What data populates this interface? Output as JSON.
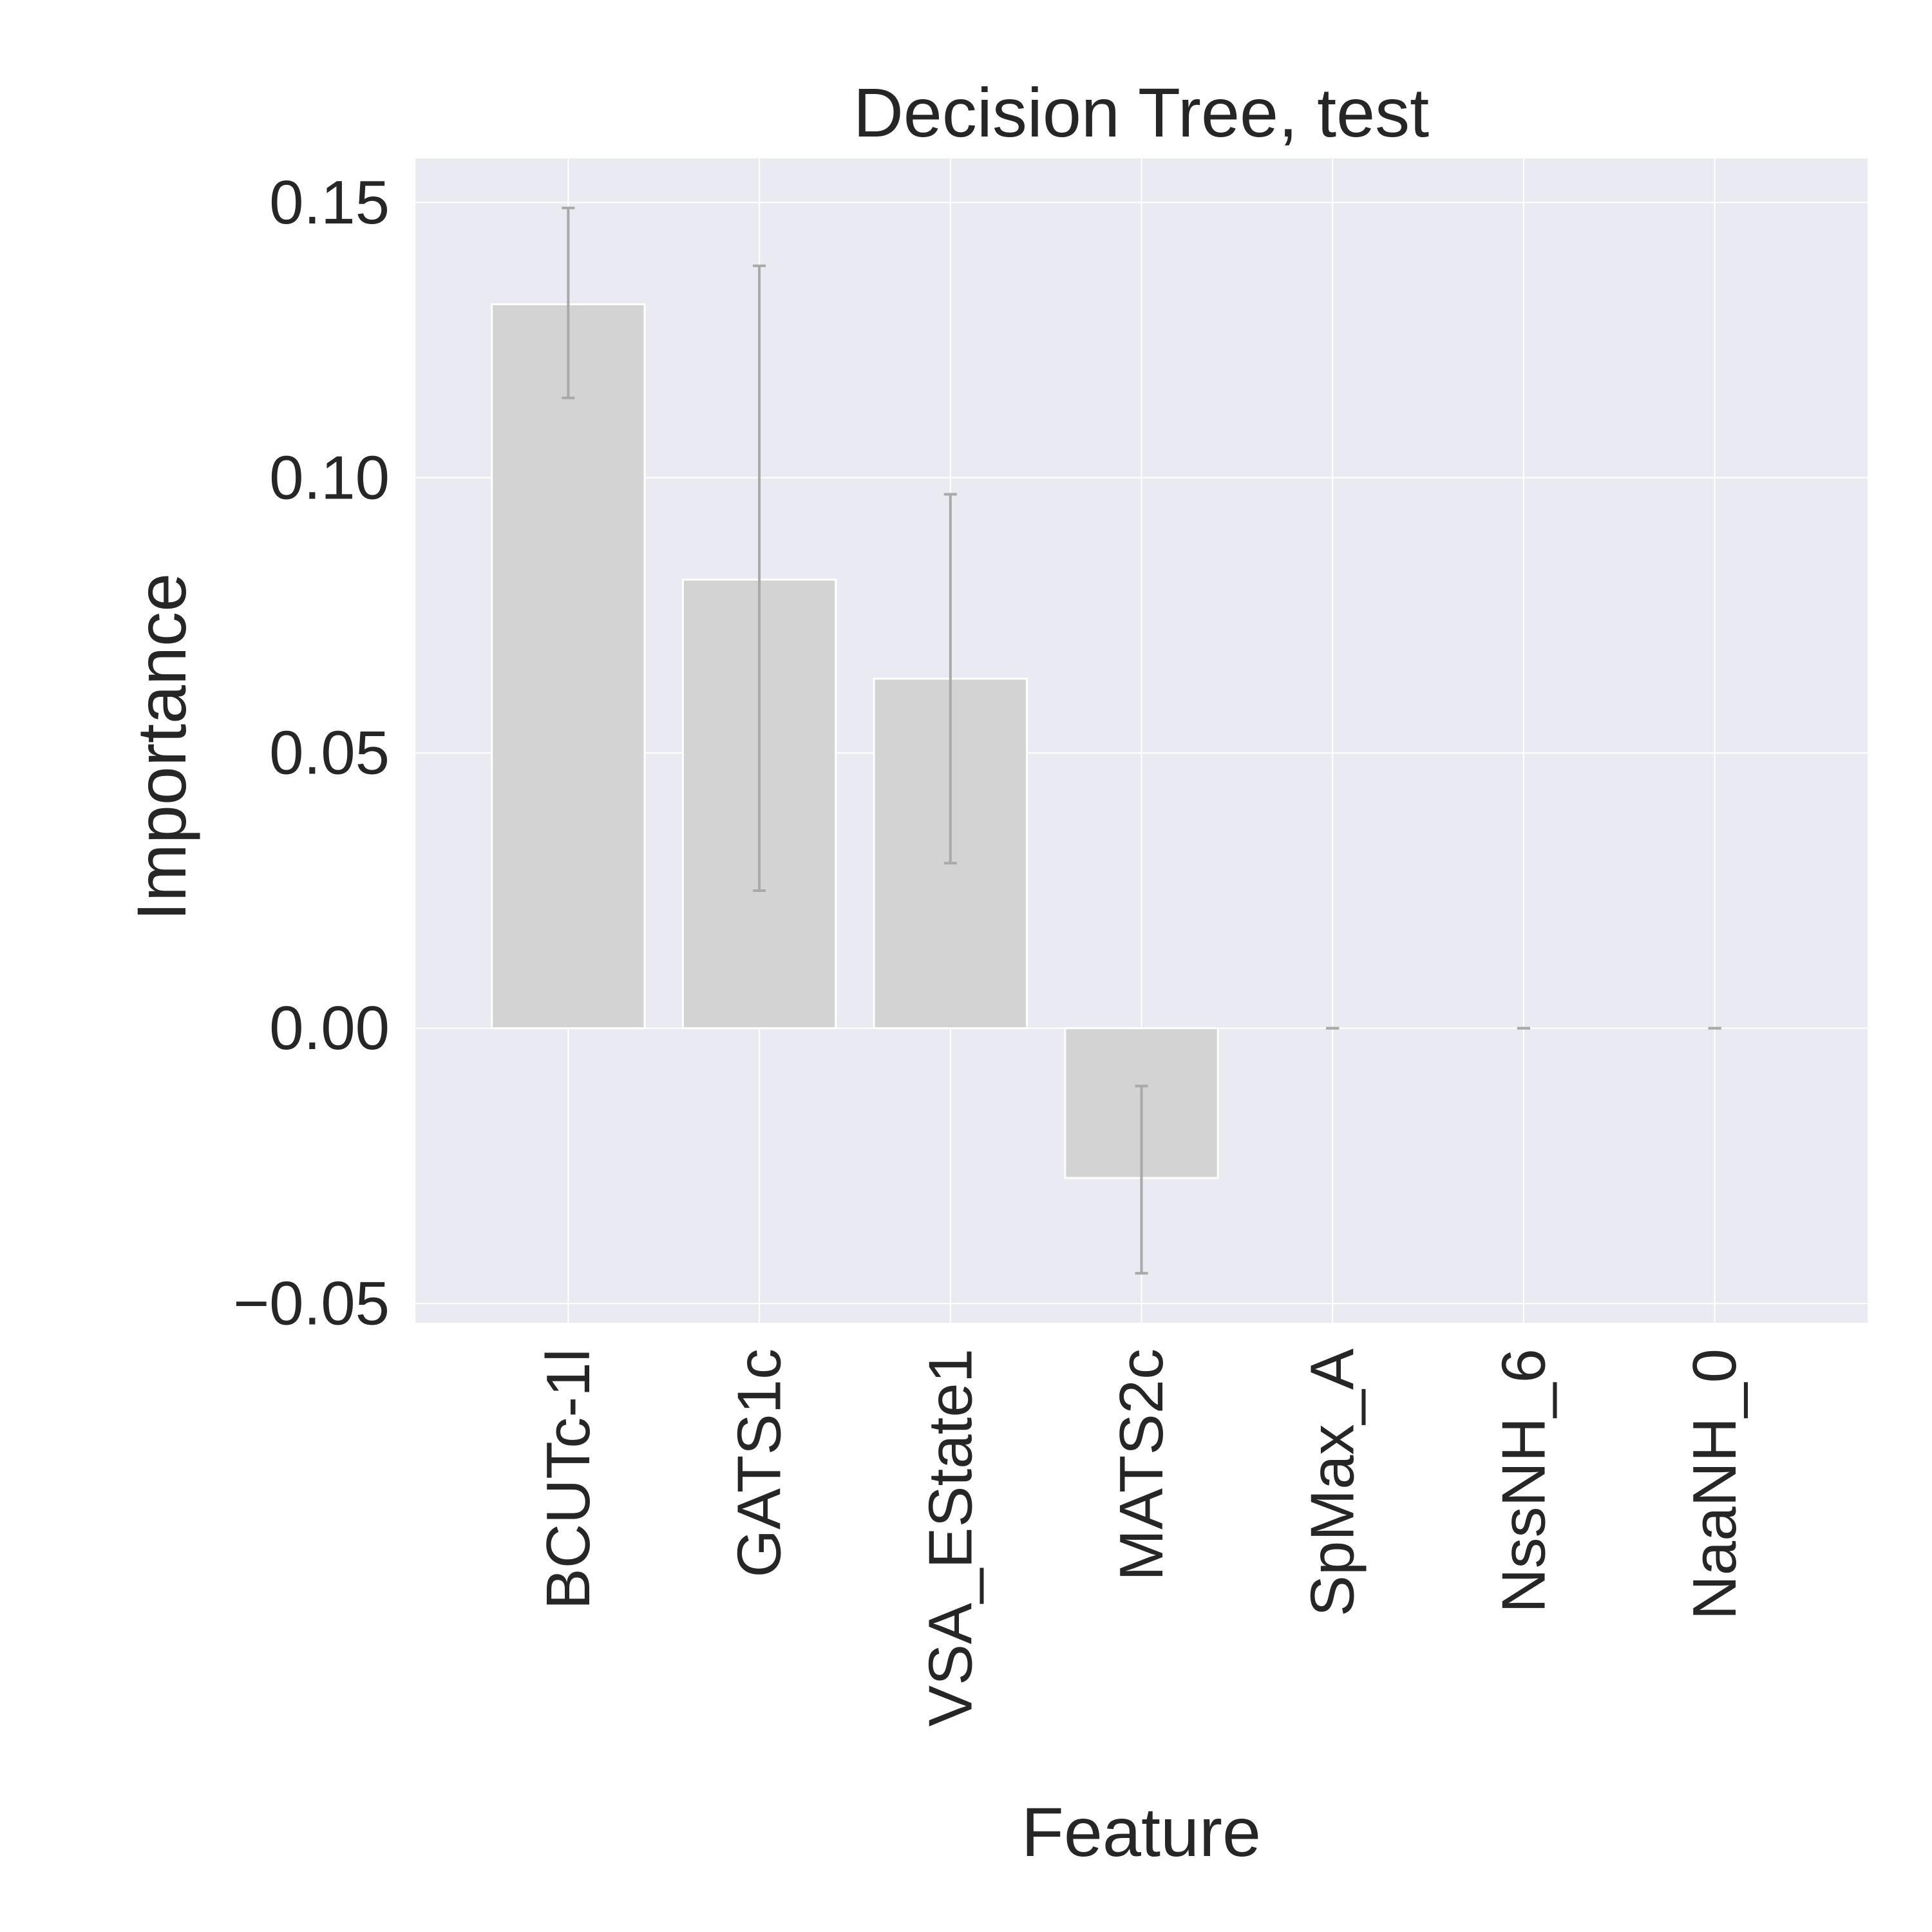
{
  "chart_data": {
    "type": "bar",
    "title": "Decision Tree, test",
    "xlabel": "Feature",
    "ylabel": "Importance",
    "categories": [
      "BCUTc-1l",
      "GATS1c",
      "VSA_EState1",
      "MATS2c",
      "SpMax_A",
      "NssNH_6",
      "NaaNH_0"
    ],
    "values": [
      0.1315,
      0.0815,
      0.0635,
      -0.0272,
      0.0,
      0.0,
      0.0
    ],
    "error_low": [
      0.1145,
      0.025,
      0.03,
      -0.0445,
      0.0,
      0.0,
      0.0
    ],
    "error_high": [
      0.149,
      0.1385,
      0.097,
      -0.0105,
      0.0,
      0.0,
      0.0
    ],
    "ylim": [
      -0.0535,
      0.158
    ],
    "yticks": [
      -0.05,
      0.0,
      0.05,
      0.1,
      0.15
    ],
    "ytick_labels": [
      "−0.05",
      "0.00",
      "0.05",
      "0.10",
      "0.15"
    ],
    "grid": true,
    "legend": "none",
    "colors": {
      "background": "#eaeaf2",
      "bar": "#d3d3d3",
      "bar_edge": "#ffffff",
      "grid": "#ffffff",
      "error_bar": "#a9a9a9",
      "text": "#262626"
    }
  }
}
